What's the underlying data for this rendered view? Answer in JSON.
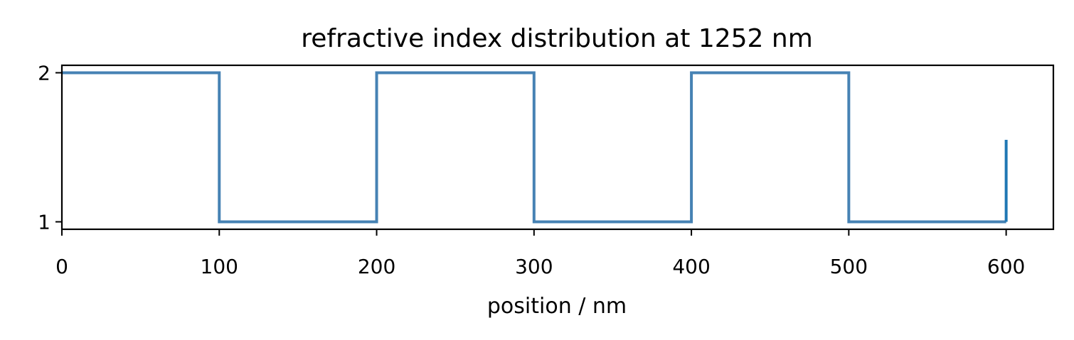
{
  "chart_data": {
    "type": "line",
    "title": "refractive index distribution at  1252 nm",
    "xlabel": "position / nm",
    "ylabel": "",
    "xlim": [
      0,
      630
    ],
    "ylim": [
      0.95,
      2.05
    ],
    "xticks": [
      0,
      100,
      200,
      300,
      400,
      500,
      600
    ],
    "yticks": [
      1,
      2
    ],
    "grid": false,
    "series": [
      {
        "color": "#4682b4",
        "step": "post",
        "x": [
          0,
          100,
          200,
          300,
          400,
          500,
          600
        ],
        "y": [
          2,
          1,
          2,
          1,
          2,
          1,
          1
        ]
      }
    ],
    "marker": {
      "x": 600,
      "y_range": [
        1,
        1.55
      ],
      "color": "#1f77b4"
    }
  }
}
